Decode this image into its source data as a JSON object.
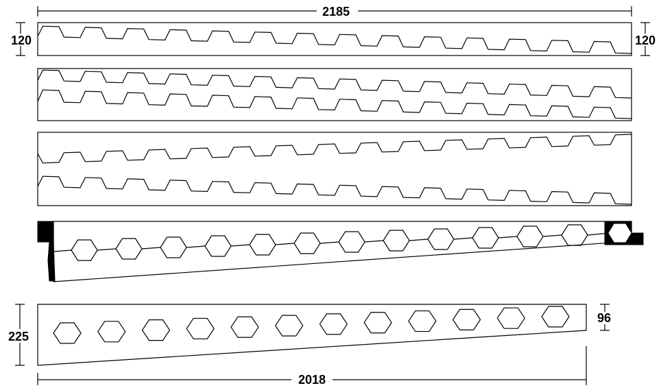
{
  "dimensions": {
    "top_length": "2185",
    "left_height": "120",
    "right_height": "120",
    "bottom_left_height": "225",
    "bottom_right_height": "96",
    "bottom_length": "2018"
  },
  "strips": {
    "strip1_teeth": 14,
    "strip2_teeth": 14,
    "strip3_teeth": 14,
    "hex_beam_hexagons": 12,
    "hex_beam_bottom_hexagons": 12
  },
  "colors": {
    "line": "#000000",
    "background": "#ffffff",
    "fill_blocks": "#000000"
  }
}
